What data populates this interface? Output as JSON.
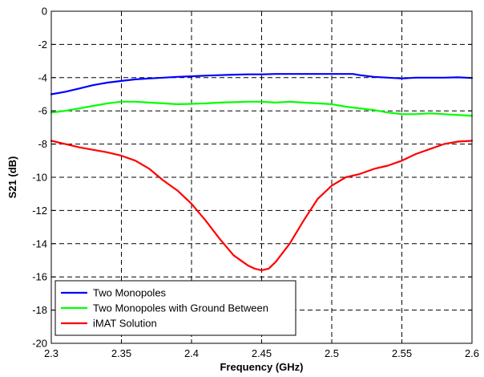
{
  "chart_data": {
    "type": "line",
    "xlabel": "Frequency (GHz)",
    "ylabel": "S21 (dB)",
    "xlim": [
      2.3,
      2.6
    ],
    "ylim": [
      -20,
      0
    ],
    "xticks": [
      2.3,
      2.35,
      2.4,
      2.45,
      2.5,
      2.55,
      2.6
    ],
    "xtick_labels": [
      "2.3",
      "2.35",
      "2.4",
      "2.45",
      "2.5",
      "2.55",
      "2.6"
    ],
    "yticks": [
      0,
      -2,
      -4,
      -6,
      -8,
      -10,
      -12,
      -14,
      -16,
      -18,
      -20
    ],
    "ytick_labels": [
      "0",
      "-2",
      "-4",
      "-6",
      "-8",
      "-10",
      "-12",
      "-14",
      "-16",
      "-18",
      "-20"
    ],
    "grid": true,
    "legend_position": "bottom-left",
    "series": [
      {
        "name": "Two Monopoles",
        "color": "#0000ff",
        "x": [
          2.3,
          2.31,
          2.32,
          2.33,
          2.34,
          2.35,
          2.36,
          2.37,
          2.38,
          2.39,
          2.4,
          2.41,
          2.42,
          2.43,
          2.44,
          2.45,
          2.46,
          2.47,
          2.48,
          2.49,
          2.5,
          2.51,
          2.515,
          2.52,
          2.53,
          2.54,
          2.55,
          2.56,
          2.57,
          2.58,
          2.59,
          2.6
        ],
        "y": [
          -5.0,
          -4.85,
          -4.65,
          -4.45,
          -4.3,
          -4.2,
          -4.1,
          -4.05,
          -4.0,
          -3.95,
          -3.92,
          -3.88,
          -3.85,
          -3.82,
          -3.8,
          -3.8,
          -3.78,
          -3.78,
          -3.78,
          -3.78,
          -3.78,
          -3.78,
          -3.78,
          -3.85,
          -3.95,
          -4.0,
          -4.05,
          -4.0,
          -4.0,
          -4.0,
          -3.98,
          -4.02
        ]
      },
      {
        "name": "Two Monopoles with Ground Between",
        "color": "#00ff00",
        "x": [
          2.3,
          2.31,
          2.32,
          2.33,
          2.34,
          2.35,
          2.36,
          2.37,
          2.38,
          2.39,
          2.4,
          2.41,
          2.42,
          2.43,
          2.44,
          2.45,
          2.46,
          2.47,
          2.48,
          2.49,
          2.5,
          2.51,
          2.52,
          2.53,
          2.54,
          2.55,
          2.56,
          2.57,
          2.58,
          2.59,
          2.6
        ],
        "y": [
          -6.1,
          -6.0,
          -5.85,
          -5.7,
          -5.55,
          -5.45,
          -5.45,
          -5.5,
          -5.55,
          -5.6,
          -5.58,
          -5.55,
          -5.5,
          -5.48,
          -5.45,
          -5.45,
          -5.5,
          -5.45,
          -5.5,
          -5.55,
          -5.6,
          -5.75,
          -5.85,
          -5.95,
          -6.1,
          -6.2,
          -6.2,
          -6.15,
          -6.2,
          -6.25,
          -6.3
        ]
      },
      {
        "name": "iMAT Solution",
        "color": "#ff0000",
        "x": [
          2.3,
          2.31,
          2.32,
          2.33,
          2.34,
          2.35,
          2.36,
          2.37,
          2.38,
          2.39,
          2.4,
          2.41,
          2.42,
          2.43,
          2.44,
          2.445,
          2.45,
          2.455,
          2.46,
          2.47,
          2.48,
          2.49,
          2.5,
          2.51,
          2.52,
          2.53,
          2.54,
          2.55,
          2.56,
          2.57,
          2.58,
          2.59,
          2.6
        ],
        "y": [
          -7.8,
          -8.0,
          -8.2,
          -8.35,
          -8.5,
          -8.7,
          -9.0,
          -9.5,
          -10.2,
          -10.8,
          -11.6,
          -12.6,
          -13.7,
          -14.7,
          -15.3,
          -15.5,
          -15.6,
          -15.5,
          -15.1,
          -14.0,
          -12.6,
          -11.3,
          -10.5,
          -10.0,
          -9.8,
          -9.5,
          -9.3,
          -9.0,
          -8.6,
          -8.3,
          -8.0,
          -7.85,
          -7.8
        ]
      }
    ]
  }
}
